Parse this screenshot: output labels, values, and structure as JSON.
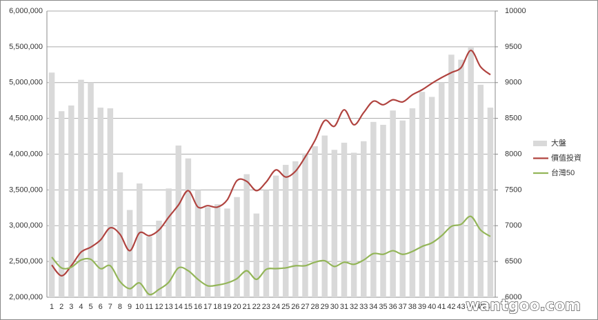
{
  "chart_data": {
    "type": "bar-line",
    "categories": [
      "1",
      "2",
      "3",
      "4",
      "5",
      "6",
      "7",
      "8",
      "9",
      "10",
      "11",
      "12",
      "13",
      "14",
      "15",
      "16",
      "17",
      "18",
      "19",
      "20",
      "21",
      "22",
      "23",
      "24",
      "25",
      "26",
      "27",
      "28",
      "29",
      "30",
      "31",
      "32",
      "33",
      "34",
      "35",
      "36",
      "37",
      "38",
      "39",
      "40",
      "41",
      "42",
      "43",
      "44",
      "45",
      "46"
    ],
    "series": [
      {
        "name": "大盤",
        "type": "bar",
        "color": "#d9d9d9",
        "values": [
          5140000,
          4600000,
          4680000,
          5040000,
          5000000,
          4650000,
          4640000,
          3745000,
          3220000,
          3590000,
          2850000,
          3070000,
          3520000,
          4120000,
          3940000,
          3500000,
          3260000,
          3300000,
          3240000,
          3400000,
          3720000,
          3170000,
          3500000,
          3700000,
          3850000,
          3900000,
          4010000,
          4110000,
          4260000,
          4060000,
          4160000,
          4020000,
          4180000,
          4450000,
          4410000,
          4610000,
          4470000,
          4640000,
          4870000,
          4800000,
          5000000,
          5390000,
          5320000,
          5490000,
          4970000,
          4650000
        ]
      },
      {
        "name": "價值投資",
        "type": "line",
        "axis": "y2",
        "color": "#b0433f",
        "values": [
          6450,
          6300,
          6440,
          6630,
          6700,
          6800,
          6970,
          6880,
          6650,
          6900,
          6860,
          6940,
          7120,
          7290,
          7490,
          7260,
          7280,
          7260,
          7360,
          7630,
          7620,
          7490,
          7610,
          7780,
          7680,
          7760,
          7960,
          8190,
          8470,
          8390,
          8620,
          8410,
          8580,
          8740,
          8690,
          8760,
          8730,
          8830,
          8900,
          8990,
          9070,
          9140,
          9210,
          9450,
          9220,
          9110
        ]
      },
      {
        "name": "台灣50",
        "type": "line",
        "axis": "y2",
        "color": "#93b558",
        "values": [
          6560,
          6410,
          6420,
          6520,
          6530,
          6400,
          6440,
          6220,
          6120,
          6200,
          6040,
          6110,
          6210,
          6410,
          6370,
          6250,
          6160,
          6170,
          6200,
          6260,
          6370,
          6250,
          6390,
          6400,
          6410,
          6440,
          6440,
          6490,
          6510,
          6430,
          6490,
          6460,
          6520,
          6610,
          6600,
          6650,
          6600,
          6640,
          6710,
          6760,
          6860,
          6990,
          7020,
          7130,
          6940,
          6850
        ]
      }
    ],
    "ylim": [
      2000000,
      6000000
    ],
    "yticks": [
      {
        "value": 2000000,
        "label": "2,000,000"
      },
      {
        "value": 2500000,
        "label": "2,500,000"
      },
      {
        "value": 3000000,
        "label": "3,000,000"
      },
      {
        "value": 3500000,
        "label": "3,500,000"
      },
      {
        "value": 4000000,
        "label": "4,000,000"
      },
      {
        "value": 4500000,
        "label": "4,500,000"
      },
      {
        "value": 5000000,
        "label": "5,000,000"
      },
      {
        "value": 5500000,
        "label": "5,500,000"
      },
      {
        "value": 6000000,
        "label": "6,000,000"
      }
    ],
    "y2lim": [
      6000,
      10000
    ],
    "y2ticks": [
      6000,
      6500,
      7000,
      7500,
      8000,
      8500,
      9000,
      9500,
      10000
    ],
    "grid": true,
    "legend": "right",
    "watermark": "wantgoo.com"
  }
}
